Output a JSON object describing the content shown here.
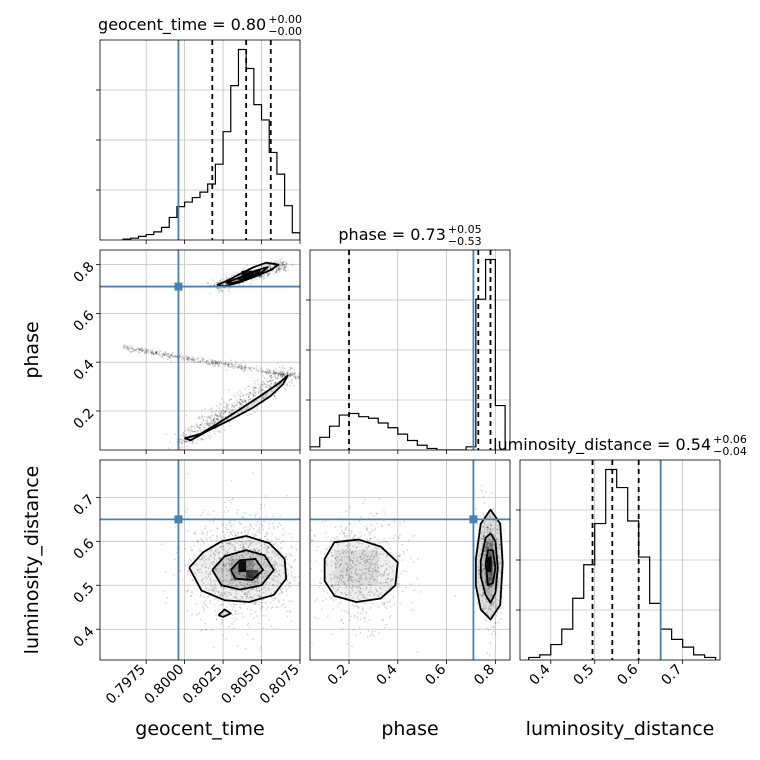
{
  "chart_data": {
    "type": "corner",
    "parameters": [
      "geocent_time",
      "phase",
      "luminosity_distance"
    ],
    "axis_labels": {
      "geocent_time": "geocent_time",
      "phase": "phase",
      "luminosity_distance": "luminosity_distance"
    },
    "panel_titles": {
      "geocent_time": {
        "prefix": "geocent_time = ",
        "value": "0.80",
        "plus": "+0.00",
        "minus": "−0.00"
      },
      "phase": {
        "prefix": "phase = ",
        "value": "0.73",
        "plus": "+0.05",
        "minus": "−0.53"
      },
      "luminosity_distance": {
        "prefix": "luminosity_distance = ",
        "value": "0.54",
        "plus": "+0.06",
        "minus": "−0.04"
      }
    },
    "ranges": {
      "geocent_time": [
        0.7945,
        0.8075
      ],
      "phase": [
        0.04,
        0.86
      ],
      "luminosity_distance": [
        0.33,
        0.785
      ]
    },
    "ticks": {
      "geocent_time": {
        "values": [
          0.7975,
          0.8,
          0.8025,
          0.805,
          0.8075
        ],
        "labels": [
          "0.7975",
          "0.8000",
          "0.8025",
          "0.8050",
          "0.8075"
        ]
      },
      "phase_x": {
        "values": [
          0.2,
          0.4,
          0.6,
          0.8
        ],
        "labels": [
          "0.2",
          "0.4",
          "0.6",
          "0.8"
        ]
      },
      "phase_y": {
        "values": [
          0.2,
          0.4,
          0.6,
          0.8
        ],
        "labels": [
          "0.2",
          "0.4",
          "0.6",
          "0.8"
        ]
      },
      "luminosity_distance": {
        "values": [
          0.4,
          0.5,
          0.6,
          0.7
        ],
        "labels": [
          "0.4",
          "0.5",
          "0.6",
          "0.7"
        ]
      }
    },
    "truth": {
      "geocent_time": 0.7996,
      "phase": 0.71,
      "luminosity_distance": 0.65
    },
    "quantiles": {
      "geocent_time": [
        0.8018,
        0.804,
        0.8056
      ],
      "phase": [
        0.2,
        0.73,
        0.78
      ],
      "luminosity_distance": [
        0.495,
        0.54,
        0.6
      ]
    },
    "histograms": {
      "geocent_time": {
        "edges": [
          0.796,
          0.7965,
          0.797,
          0.7975,
          0.798,
          0.7985,
          0.799,
          0.7995,
          0.8,
          0.8005,
          0.801,
          0.8015,
          0.802,
          0.8025,
          0.803,
          0.8035,
          0.804,
          0.8045,
          0.805,
          0.8055,
          0.806,
          0.8065,
          0.807,
          0.8075
        ],
        "counts": [
          1,
          2,
          4,
          6,
          9,
          14,
          25,
          37,
          42,
          47,
          53,
          62,
          84,
          120,
          171,
          211,
          190,
          150,
          133,
          97,
          73,
          38,
          8
        ]
      },
      "phase": {
        "edges": [
          0.04,
          0.08,
          0.12,
          0.16,
          0.2,
          0.24,
          0.28,
          0.32,
          0.36,
          0.4,
          0.44,
          0.48,
          0.52,
          0.56,
          0.6,
          0.64,
          0.68,
          0.72,
          0.76,
          0.8,
          0.84
        ],
        "counts": [
          2,
          8,
          15,
          22,
          23,
          21,
          20,
          17,
          14,
          10,
          6,
          3,
          1,
          0,
          0,
          0,
          2,
          95,
          120,
          28
        ]
      },
      "luminosity_distance": {
        "edges": [
          0.35,
          0.375,
          0.4,
          0.425,
          0.45,
          0.475,
          0.5,
          0.525,
          0.55,
          0.575,
          0.6,
          0.625,
          0.65,
          0.675,
          0.7,
          0.725,
          0.75,
          0.775
        ],
        "counts": [
          1,
          2,
          6,
          12,
          24,
          37,
          53,
          74,
          67,
          54,
          40,
          22,
          12,
          8,
          5,
          2,
          1
        ]
      }
    },
    "contours": {
      "phase_vs_geocent_time": [
        [
          [
            0.8021,
            0.716
          ],
          [
            0.8028,
            0.735
          ],
          [
            0.8036,
            0.762
          ],
          [
            0.8045,
            0.79
          ],
          [
            0.8053,
            0.808
          ],
          [
            0.8061,
            0.8
          ],
          [
            0.8056,
            0.778
          ],
          [
            0.8046,
            0.752
          ],
          [
            0.8035,
            0.726
          ],
          [
            0.8026,
            0.712
          ],
          [
            0.8021,
            0.716
          ]
        ],
        [
          [
            0.8027,
            0.726
          ],
          [
            0.8036,
            0.748
          ],
          [
            0.8046,
            0.775
          ],
          [
            0.8054,
            0.79
          ],
          [
            0.805,
            0.768
          ],
          [
            0.804,
            0.74
          ],
          [
            0.8031,
            0.724
          ],
          [
            0.8027,
            0.726
          ]
        ],
        [
          [
            0.8034,
            0.742
          ],
          [
            0.8042,
            0.762
          ],
          [
            0.8049,
            0.778
          ],
          [
            0.8046,
            0.758
          ],
          [
            0.8038,
            0.74
          ],
          [
            0.8034,
            0.742
          ]
        ],
        [
          [
            0.8,
            0.088
          ],
          [
            0.801,
            0.105
          ],
          [
            0.8022,
            0.15
          ],
          [
            0.8038,
            0.215
          ],
          [
            0.805,
            0.265
          ],
          [
            0.8061,
            0.312
          ],
          [
            0.8067,
            0.345
          ],
          [
            0.8064,
            0.31
          ],
          [
            0.8056,
            0.262
          ],
          [
            0.8044,
            0.212
          ],
          [
            0.803,
            0.165
          ],
          [
            0.8015,
            0.118
          ],
          [
            0.8004,
            0.08
          ],
          [
            0.8,
            0.088
          ]
        ]
      ],
      "luminosity_distance_vs_geocent_time": [
        [
          [
            0.8003,
            0.54
          ],
          [
            0.8012,
            0.575
          ],
          [
            0.8024,
            0.6
          ],
          [
            0.804,
            0.612
          ],
          [
            0.8055,
            0.596
          ],
          [
            0.8065,
            0.56
          ],
          [
            0.8066,
            0.515
          ],
          [
            0.8058,
            0.478
          ],
          [
            0.8042,
            0.462
          ],
          [
            0.8026,
            0.466
          ],
          [
            0.8011,
            0.488
          ],
          [
            0.8003,
            0.54
          ]
        ],
        [
          [
            0.8018,
            0.535
          ],
          [
            0.8026,
            0.566
          ],
          [
            0.804,
            0.58
          ],
          [
            0.8052,
            0.568
          ],
          [
            0.8058,
            0.535
          ],
          [
            0.805,
            0.5
          ],
          [
            0.8036,
            0.49
          ],
          [
            0.8024,
            0.5
          ],
          [
            0.8018,
            0.535
          ]
        ],
        [
          [
            0.803,
            0.535
          ],
          [
            0.8036,
            0.557
          ],
          [
            0.8046,
            0.56
          ],
          [
            0.8051,
            0.535
          ],
          [
            0.8044,
            0.512
          ],
          [
            0.8033,
            0.515
          ],
          [
            0.803,
            0.535
          ]
        ],
        [
          [
            0.8022,
            0.432
          ],
          [
            0.8026,
            0.445
          ],
          [
            0.803,
            0.436
          ],
          [
            0.8025,
            0.428
          ],
          [
            0.8022,
            0.432
          ]
        ]
      ],
      "luminosity_distance_vs_phase": [
        [
          [
            0.1,
            0.56
          ],
          [
            0.14,
            0.598
          ],
          [
            0.24,
            0.604
          ],
          [
            0.33,
            0.588
          ],
          [
            0.4,
            0.552
          ],
          [
            0.39,
            0.5
          ],
          [
            0.33,
            0.47
          ],
          [
            0.23,
            0.462
          ],
          [
            0.14,
            0.476
          ],
          [
            0.1,
            0.51
          ],
          [
            0.1,
            0.56
          ]
        ],
        [
          [
            0.72,
            0.56
          ],
          [
            0.74,
            0.64
          ],
          [
            0.78,
            0.672
          ],
          [
            0.82,
            0.64
          ],
          [
            0.83,
            0.55
          ],
          [
            0.82,
            0.455
          ],
          [
            0.78,
            0.422
          ],
          [
            0.74,
            0.445
          ],
          [
            0.72,
            0.5
          ],
          [
            0.72,
            0.56
          ]
        ],
        [
          [
            0.74,
            0.555
          ],
          [
            0.76,
            0.608
          ],
          [
            0.78,
            0.618
          ],
          [
            0.8,
            0.6
          ],
          [
            0.81,
            0.54
          ],
          [
            0.8,
            0.482
          ],
          [
            0.78,
            0.46
          ],
          [
            0.76,
            0.478
          ],
          [
            0.74,
            0.52
          ],
          [
            0.74,
            0.555
          ]
        ],
        [
          [
            0.76,
            0.55
          ],
          [
            0.77,
            0.58
          ],
          [
            0.79,
            0.58
          ],
          [
            0.8,
            0.54
          ],
          [
            0.79,
            0.505
          ],
          [
            0.77,
            0.5
          ],
          [
            0.76,
            0.55
          ]
        ]
      ]
    },
    "grid": true,
    "colors": {
      "truth": "#4682b4",
      "hist": "#000000",
      "scatter": "#000000",
      "grid": "#c0c0c0"
    }
  }
}
